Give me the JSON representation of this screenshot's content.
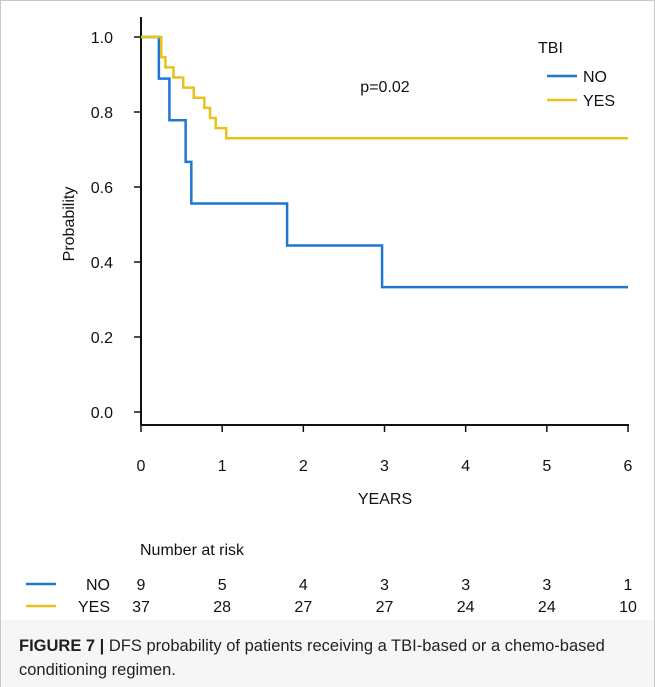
{
  "chart_data": {
    "type": "line",
    "subtype": "kaplan-meier step",
    "xlabel": "YEARS",
    "ylabel": "Probability",
    "xlim": [
      0,
      6
    ],
    "ylim": [
      0,
      1
    ],
    "xticks": [
      "0",
      "1",
      "2",
      "3",
      "4",
      "5",
      "6"
    ],
    "yticks": [
      "0.0",
      "0.2",
      "0.4",
      "0.6",
      "0.8",
      "1.0"
    ],
    "legend_title": "TBI",
    "legend_position": "top-right",
    "annotation": "p=0.02",
    "series": [
      {
        "name": "NO",
        "color": "#1f77d0",
        "x": [
          0,
          0.22,
          0.35,
          0.55,
          0.62,
          1.8,
          2.97,
          6
        ],
        "y": [
          1.0,
          0.889,
          0.778,
          0.667,
          0.556,
          0.444,
          0.333,
          0.333
        ]
      },
      {
        "name": "YES",
        "color": "#e8c21c",
        "x": [
          0,
          0.25,
          0.3,
          0.4,
          0.52,
          0.62,
          0.65,
          0.78,
          0.85,
          0.92,
          1.0,
          1.05,
          6
        ],
        "y": [
          1.0,
          0.946,
          0.919,
          0.892,
          0.865,
          0.865,
          0.838,
          0.811,
          0.784,
          0.757,
          0.757,
          0.73,
          0.73
        ]
      }
    ],
    "risk_table": {
      "title": "Number at risk",
      "times": [
        0,
        1,
        2,
        3,
        4,
        5,
        6
      ],
      "rows": [
        {
          "name": "NO",
          "color": "#1f77d0",
          "values": [
            "9",
            "5",
            "4",
            "3",
            "3",
            "3",
            "1"
          ]
        },
        {
          "name": "YES",
          "color": "#e8c21c",
          "values": [
            "37",
            "28",
            "27",
            "27",
            "24",
            "24",
            "10"
          ]
        }
      ]
    }
  },
  "caption": {
    "label": "FIGURE 7 |",
    "text": " DFS probability of patients receiving a TBI-based or a chemo-based conditioning regimen."
  }
}
